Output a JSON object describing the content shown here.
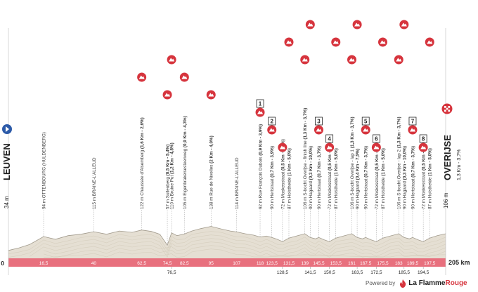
{
  "chart_data": {
    "type": "area",
    "title": "",
    "xlabel": "",
    "ylabel": "",
    "distance_unit": "km",
    "total_distance_label": "205 km",
    "xlim": [
      0,
      205
    ],
    "start": {
      "altitude": "34 m",
      "name": "LEUVEN"
    },
    "finish": {
      "altitude": "106 m",
      "name": "OVERIJSE",
      "climb": "1,3 Km - 3,7%"
    },
    "km_axis": [
      {
        "km": 0,
        "label": "0",
        "row": 1
      },
      {
        "km": 16.5,
        "label": "16,5",
        "row": 1
      },
      {
        "km": 40,
        "label": "40",
        "row": 1
      },
      {
        "km": 62.5,
        "label": "62,5",
        "row": 1
      },
      {
        "km": 74.5,
        "label": "74,5",
        "row": 1
      },
      {
        "km": 76.5,
        "label": "76,5",
        "row": 2
      },
      {
        "km": 82.5,
        "label": "82,5",
        "row": 1
      },
      {
        "km": 95,
        "label": "95",
        "row": 1
      },
      {
        "km": 107,
        "label": "107",
        "row": 1
      },
      {
        "km": 118,
        "label": "118",
        "row": 1
      },
      {
        "km": 123.5,
        "label": "123,5",
        "row": 1
      },
      {
        "km": 128.5,
        "label": "128,5",
        "row": 2
      },
      {
        "km": 131.5,
        "label": "131,5",
        "row": 1
      },
      {
        "km": 139,
        "label": "139",
        "row": 1
      },
      {
        "km": 141.5,
        "label": "141,5",
        "row": 2
      },
      {
        "km": 145.5,
        "label": "145,5",
        "row": 1
      },
      {
        "km": 150.5,
        "label": "150,5",
        "row": 2
      },
      {
        "km": 153.5,
        "label": "153,5",
        "row": 1
      },
      {
        "km": 161,
        "label": "161",
        "row": 1
      },
      {
        "km": 163.5,
        "label": "163,5",
        "row": 2
      },
      {
        "km": 167.5,
        "label": "167,5",
        "row": 1
      },
      {
        "km": 172.5,
        "label": "172,5",
        "row": 2
      },
      {
        "km": 175.5,
        "label": "175,5",
        "row": 1
      },
      {
        "km": 183,
        "label": "183",
        "row": 1
      },
      {
        "km": 185.5,
        "label": "185,5",
        "row": 2
      },
      {
        "km": 189.5,
        "label": "189,5",
        "row": 1
      },
      {
        "km": 194.5,
        "label": "194,5",
        "row": 2
      },
      {
        "km": 197.5,
        "label": "197,5",
        "row": 1
      }
    ],
    "waypoints": [
      {
        "km": 16.5,
        "altitude": "94 m",
        "name": "OTTENBOURG (HULDENBERG)",
        "climb": ""
      },
      {
        "km": 40,
        "altitude": "115 m",
        "name": "BRAINE-L'ALLEUD",
        "climb": ""
      },
      {
        "km": 62.5,
        "altitude": "122 m",
        "name": "Chaussée d'Alsemberg",
        "climb": "(1,6 Km - 2,6%)",
        "icon": "climb",
        "icon_level": 2
      },
      {
        "km": 74.5,
        "altitude": "57 m",
        "name": "Sollenberg",
        "climb": "(0,5 Km - 5,4%)",
        "icon": "climb",
        "icon_level": 1
      },
      {
        "km": 76.5,
        "altitude": "110 m",
        "name": "Bruine Put",
        "climb": "(1,2 Km - 4,8%)",
        "icon": "climb",
        "icon_level": 3
      },
      {
        "km": 82.5,
        "altitude": "105 m",
        "name": "Eigenbrakelsesteenweg",
        "climb": "(0,9 Km - 4,3%)",
        "icon": "climb",
        "icon_level": 2
      },
      {
        "km": 95,
        "altitude": "138 m",
        "name": "Rue de Nivelles",
        "climb": "(2 Km - 4,0%)",
        "icon": "climb",
        "icon_level": 1
      },
      {
        "km": 107,
        "altitude": "114 m",
        "name": "BRAINE-L'ALLEUD",
        "climb": ""
      },
      {
        "km": 118,
        "altitude": "92 m",
        "name": "Rue François Dubois",
        "climb": "(0,9 Km - 3,9%)",
        "icon": "climb",
        "icon_level": 0,
        "badge": "1"
      },
      {
        "km": 123.5,
        "altitude": "90 m",
        "name": "Hertstraat",
        "climb": "(0,7 Km - 3,9%)",
        "icon": "climb",
        "icon_level": -1,
        "badge": "2"
      },
      {
        "km": 128.5,
        "altitude": "72 m",
        "name": "Moskesstraat",
        "climb": "(0,5 Km - 7,0%)",
        "icon": "climb",
        "icon_level": -2
      },
      {
        "km": 131.5,
        "altitude": "87 m",
        "name": "Holstheide",
        "climb": "(1 Km - 5,0%)",
        "icon": "climb",
        "icon_level": 4
      },
      {
        "km": 139,
        "altitude": "106 m",
        "name": "S-bocht Overijse - finish line",
        "climb": "(1,3 Km - 3,7%)",
        "icon": "climb",
        "icon_level": 3
      },
      {
        "km": 141.5,
        "altitude": "90 m",
        "name": "Hagaard",
        "climb": "(0,3 Km - 10,0%)",
        "icon": "climb",
        "icon_level": 5
      },
      {
        "km": 145.5,
        "altitude": "90 m",
        "name": "Hertstraat",
        "climb": "(0,7 Km - 3,7%)",
        "icon": "climb",
        "icon_level": -1,
        "badge": "3"
      },
      {
        "km": 150.5,
        "altitude": "72 m",
        "name": "Moskesstraat",
        "climb": "(0,5 Km - 7,0%)",
        "icon": "climb",
        "icon_level": -2,
        "badge": "4"
      },
      {
        "km": 153.5,
        "altitude": "87 m",
        "name": "Holstheide",
        "climb": "(1 Km - 5,0%)",
        "icon": "climb",
        "icon_level": 4
      },
      {
        "km": 161,
        "altitude": "106 m",
        "name": "S-bocht Overijse - lap 1",
        "climb": "(1,3 Km - 3,7%)",
        "icon": "climb",
        "icon_level": 3
      },
      {
        "km": 163.5,
        "altitude": "90 m",
        "name": "Hagaard",
        "climb": "(0,4 Km - 7,5%)",
        "icon": "climb",
        "icon_level": 5
      },
      {
        "km": 167.5,
        "altitude": "90 m",
        "name": "Hertstraat",
        "climb": "(0,7 Km - 3,7%)",
        "icon": "climb",
        "icon_level": -1,
        "badge": "5"
      },
      {
        "km": 172.5,
        "altitude": "72 m",
        "name": "Moskesstraat",
        "climb": "(0,5 Km - 7,0%)",
        "icon": "climb",
        "icon_level": -2,
        "badge": "6"
      },
      {
        "km": 175.5,
        "altitude": "87 m",
        "name": "Holstheide",
        "climb": "(1 Km - 5,0%)",
        "icon": "climb",
        "icon_level": 4
      },
      {
        "km": 183,
        "altitude": "106 m",
        "name": "S-bocht Overijse - lap 2",
        "climb": "(1,3 Km - 3,7%)",
        "icon": "climb",
        "icon_level": 3
      },
      {
        "km": 185.5,
        "altitude": "90 m",
        "name": "Hagaard",
        "climb": "(0,3 Km - 10,0%)",
        "icon": "climb",
        "icon_level": 5
      },
      {
        "km": 189.5,
        "altitude": "90 m",
        "name": "Hertstraat",
        "climb": "(0,7 Km - 3,7%)",
        "icon": "climb",
        "icon_level": -1,
        "badge": "7"
      },
      {
        "km": 194.5,
        "altitude": "72 m",
        "name": "Moskesstraat",
        "climb": "(0,5 Km - 7,0%)",
        "icon": "climb",
        "icon_level": -2,
        "badge": "8"
      },
      {
        "km": 197.5,
        "altitude": "87 m",
        "name": "Holstheide",
        "climb": "(1 Km - 5,0%)",
        "icon": "climb",
        "icon_level": 4
      }
    ],
    "profile": {
      "km": [
        0,
        5,
        10,
        16.5,
        22,
        28,
        34,
        40,
        46,
        52,
        58,
        62.5,
        67,
        71,
        74.5,
        76.5,
        79,
        82.5,
        86,
        90,
        95,
        100,
        104,
        107,
        111,
        115,
        118,
        121,
        123.5,
        126,
        128.5,
        131.5,
        135,
        139,
        141.5,
        144,
        145.5,
        148,
        150.5,
        153.5,
        157,
        161,
        163.5,
        166,
        167.5,
        170,
        172.5,
        175.5,
        179,
        183,
        185.5,
        188,
        189.5,
        192,
        194.5,
        197.5,
        201,
        205
      ],
      "altitude_m": [
        34,
        45,
        60,
        94,
        82,
        98,
        104,
        115,
        104,
        118,
        112,
        122,
        116,
        104,
        57,
        110,
        98,
        105,
        118,
        128,
        138,
        126,
        118,
        114,
        106,
        100,
        92,
        96,
        90,
        82,
        72,
        87,
        96,
        106,
        90,
        84,
        90,
        80,
        72,
        87,
        96,
        106,
        90,
        84,
        90,
        80,
        72,
        87,
        96,
        106,
        90,
        84,
        90,
        80,
        72,
        87,
        98,
        106
      ]
    },
    "ylim": [
      0,
      400
    ],
    "colors": {
      "profile_fill": "#e5dfd3",
      "profile_line": "#a19a8c",
      "baseline": "#e8707e",
      "icon_red": "#d6343d",
      "start_blue": "#2c5aa8",
      "text": "#1f1f1f",
      "waypoint_text": "#3c3c3c"
    }
  },
  "footer": {
    "powered_by": "Powered by",
    "brand_prefix": "La Flamme",
    "brand_suffix": "Rouge"
  }
}
